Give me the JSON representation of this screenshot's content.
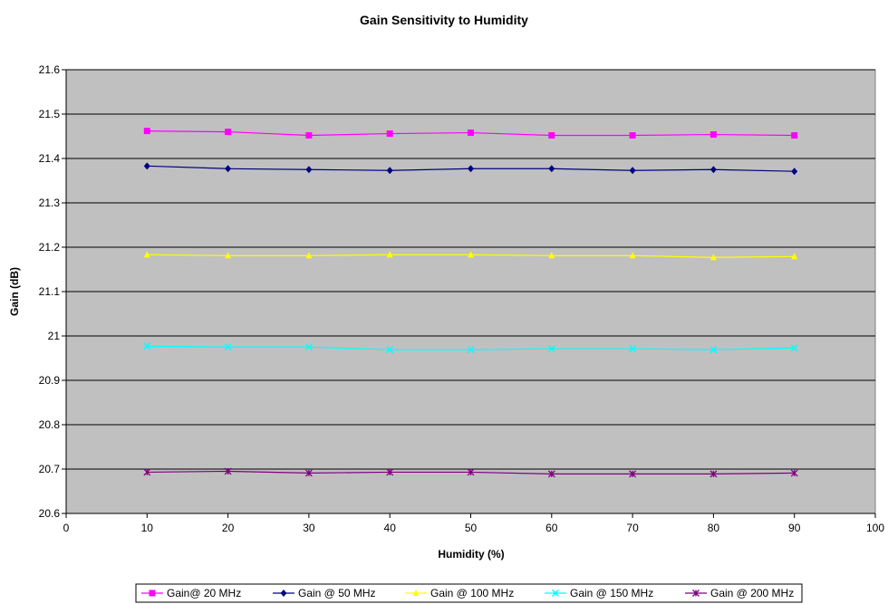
{
  "chart_data": {
    "type": "line",
    "title": "Gain Sensitivity to Humidity",
    "xlabel": "Humidity (%)",
    "ylabel": "Gain (dB)",
    "xlim": [
      0,
      100
    ],
    "ylim": [
      20.6,
      21.6
    ],
    "x_ticks": [
      "0",
      "10",
      "20",
      "30",
      "40",
      "50",
      "60",
      "70",
      "80",
      "90",
      "100"
    ],
    "y_ticks": [
      "20.6",
      "20.7",
      "20.8",
      "20.9",
      "21",
      "21.1",
      "21.2",
      "21.3",
      "21.4",
      "21.5",
      "21.6"
    ],
    "grid": "horizontal",
    "plot_background": "#c0c0c0",
    "legend_position": "bottom",
    "x": [
      10,
      20,
      30,
      40,
      50,
      60,
      70,
      80,
      90
    ],
    "series": [
      {
        "name": "Gain@ 20 MHz",
        "color": "#ff00ff",
        "marker": "square",
        "values": [
          21.462,
          21.46,
          21.452,
          21.456,
          21.458,
          21.452,
          21.452,
          21.454,
          21.452
        ]
      },
      {
        "name": "Gain @ 50 MHz",
        "color": "#000080",
        "marker": "diamond",
        "values": [
          21.383,
          21.377,
          21.375,
          21.373,
          21.377,
          21.377,
          21.373,
          21.375,
          21.371
        ]
      },
      {
        "name": "Gain @ 100 MHz",
        "color": "#ffff00",
        "marker": "triangle",
        "values": [
          21.183,
          21.181,
          21.181,
          21.183,
          21.183,
          21.181,
          21.181,
          21.177,
          21.179
        ]
      },
      {
        "name": "Gain @ 150 MHz",
        "color": "#00ffff",
        "marker": "x",
        "values": [
          20.977,
          20.975,
          20.975,
          20.969,
          20.969,
          20.971,
          20.971,
          20.969,
          20.973
        ]
      },
      {
        "name": "Gain @ 200 MHz",
        "color": "#800080",
        "marker": "star",
        "values": [
          20.693,
          20.695,
          20.691,
          20.693,
          20.693,
          20.689,
          20.689,
          20.689,
          20.691
        ]
      }
    ]
  }
}
